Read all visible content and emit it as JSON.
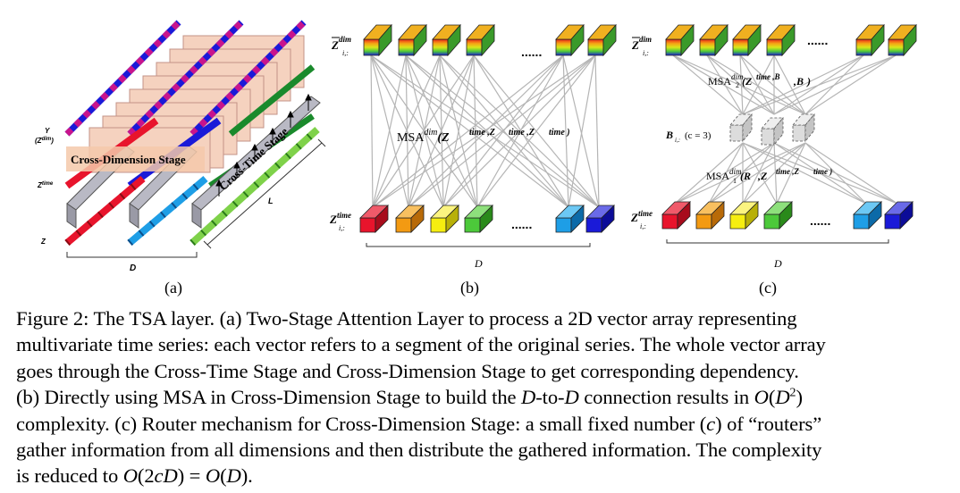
{
  "panel_a": {
    "label": "(a)",
    "y_label": "Y",
    "y_sub_label": "(Z",
    "y_sub_sup": "dim",
    "y_sub_close": ")",
    "ztime_label": "Z",
    "ztime_sup": "time",
    "z_label": "Z",
    "d_label": "D",
    "l_label": "L",
    "cross_dim_stage": "Cross-Dimension Stage",
    "cross_time_stage": "Cross-Time Stage"
  },
  "panel_b": {
    "label": "(b)",
    "top_var": "Z",
    "top_sup": "dim",
    "top_sub": "i,:",
    "bottom_var": "Z",
    "bottom_sup": "time",
    "bottom_sub": "i,:",
    "msa_text": "MSA",
    "msa_sup": "dim",
    "msa_args": "(Z",
    "dots": "......",
    "d_label": "D"
  },
  "panel_c": {
    "label": "(c)",
    "top_var": "Z",
    "top_sup": "dim",
    "top_sub": "i,:",
    "bottom_var": "Z",
    "bottom_sup": "time",
    "bottom_sub": "i,:",
    "msa2_text": "MSA",
    "msa2_sup": "dim",
    "msa2_sub": "2",
    "msa1_text": "MSA",
    "msa1_sup": "dim",
    "msa1_sub": "1",
    "router_label": "B",
    "router_sub": "i,:",
    "router_count": "(c = 3)",
    "dots": "......",
    "d_label": "D"
  },
  "caption": {
    "line1": "Figure 2: The TSA layer. (a) Two-Stage Attention Layer to process a 2D vector array representing",
    "line2": "multivariate time series: each vector refers to a segment of the original series. The whole vector array",
    "line3": "goes through the Cross-Time Stage and Cross-Dimension Stage to get corresponding dependency.",
    "line4a": "(b) Directly using MSA in Cross-Dimension Stage to build the ",
    "line4b": "D",
    "line4c": "-to-",
    "line4d": "D",
    "line4e": " connection results in ",
    "line4f": "O",
    "line4g": "(",
    "line4h": "D",
    "line4i": "2",
    "line4j": ")",
    "line5": "complexity. (c) Router mechanism for Cross-Dimension Stage: a small fixed number (",
    "line5b": "c",
    "line5c": ") of “routers”",
    "line6": "gather information from all dimensions and then distribute the gathered information. The complexity",
    "line7a": "is reduced to ",
    "line7b": "O",
    "line7c": "(2",
    "line7d": "cD",
    "line7e": ") = ",
    "line7f": "O",
    "line7g": "(",
    "line7h": "D",
    "line7i": ").",
    "colors": {
      "red": "#e8142c",
      "orange": "#f39a12",
      "yellow": "#f6ee10",
      "green": "#4cc93a",
      "cyan": "#1e9ee6",
      "blue": "#1a1ad8"
    }
  }
}
